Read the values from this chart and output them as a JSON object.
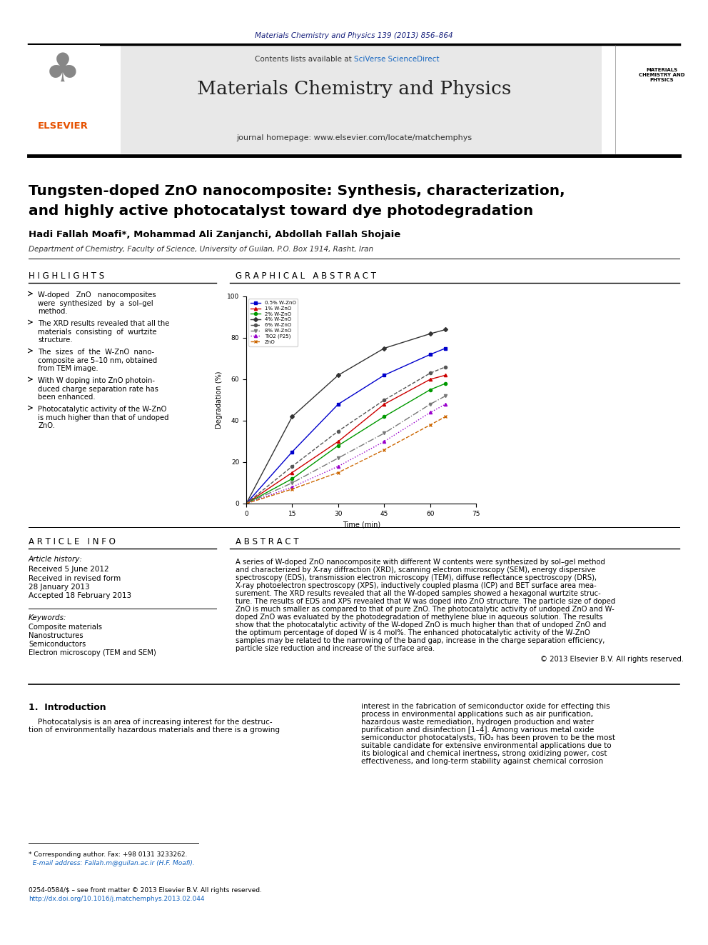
{
  "journal_ref": "Materials Chemistry and Physics 139 (2013) 856–864",
  "journal_name": "Materials Chemistry and Physics",
  "journal_url": "journal homepage: www.elsevier.com/locate/matchemphys",
  "contents_line": "Contents lists available at SciVerse ScienceDirect",
  "paper_title": "Tungsten-doped ZnO nanocomposite: Synthesis, characterization,\nand highly active photocatalyst toward dye photodegradation",
  "authors": "Hadi Fallah Moafi*, Mohammad Ali Zanjanchi, Abdollah Fallah Shojaie",
  "affiliation": "Department of Chemistry, Faculty of Science, University of Guilan, P.O. Box 1914, Rasht, Iran",
  "highlights_title": "H I G H L I G H T S",
  "highlights": [
    "W-doped   ZnO   nanocomposites\nwere  synthesized  by  a  sol–gel\nmethod.",
    "The XRD results revealed that all the\nmaterials  consisting  of  wurtzite\nstructure.",
    "The  sizes  of  the  W-ZnO  nano-\ncomposite are 5–10 nm, obtained\nfrom TEM image.",
    "With W doping into ZnO photoin-\nduced charge separation rate has\nbeen enhanced.",
    "Photocatalytic activity of the W-ZnO\nis much higher than that of undoped\nZnO."
  ],
  "graphical_abstract_title": "G R A P H I C A L   A B S T R A C T",
  "article_info_title": "A R T I C L E   I N F O",
  "article_history_title": "Article history:",
  "received": "Received 5 June 2012",
  "received_revised": "Received in revised form\n28 January 2013",
  "accepted": "Accepted 18 February 2013",
  "keywords_title": "Keywords:",
  "keywords": "Composite materials\nNanostructures\nSemiconductors\nElectron microscopy (TEM and SEM)",
  "abstract_title": "A B S T R A C T",
  "abstract_text": "A series of W-doped ZnO nanocomposite with different W contents were synthesized by sol–gel method\nand characterized by X-ray diffraction (XRD), scanning electron microscopy (SEM), energy dispersive\nspectroscopy (EDS), transmission electron microscopy (TEM), diffuse reflectance spectroscopy (DRS),\nX-ray photoelectron spectroscopy (XPS), inductively coupled plasma (ICP) and BET surface area mea-\nsurement. The XRD results revealed that all the W-doped samples showed a hexagonal wurtzite struc-\nture. The results of EDS and XPS revealed that W was doped into ZnO structure. The particle size of doped\nZnO is much smaller as compared to that of pure ZnO. The photocatalytic activity of undoped ZnO and W-\ndoped ZnO was evaluated by the photodegradation of methylene blue in aqueous solution. The results\nshow that the photocatalytic activity of the W-doped ZnO is much higher than that of undoped ZnO and\nthe optimum percentage of doped W is 4 mol%. The enhanced photocatalytic activity of the W-ZnO\nsamples may be related to the narrowing of the band gap, increase in the charge separation efficiency,\nparticle size reduction and increase of the surface area.",
  "copyright": "© 2013 Elsevier B.V. All rights reserved.",
  "intro_title": "1.  Introduction",
  "intro_left": "    Photocatalysis is an area of increasing interest for the destruc-\ntion of environmentally hazardous materials and there is a growing",
  "intro_right": "interest in the fabrication of semiconductor oxide for effecting this\nprocess in environmental applications such as air purification,\nhazardous waste remediation, hydrogen production and water\npurification and disinfection [1–4]. Among various metal oxide\nsemiconductor photocatalysts, TiO₂ has been proven to be the most\nsuitable candidate for extensive environmental applications due to\nits biological and chemical inertness, strong oxidizing power, cost\neffectiveness, and long-term stability against chemical corrosion",
  "footnote1": "* Corresponding author. Fax: +98 0131 3233262.",
  "footnote2": "  E-mail address: Fallah.m@guilan.ac.ir (H.F. Moafi).",
  "footnote3": "0254-0584/$ – see front matter © 2013 Elsevier B.V. All rights reserved.",
  "footnote4": "http://dx.doi.org/10.1016/j.matchemphys.2013.02.044",
  "graph_series": [
    {
      "label": "0.5% W-ZnO",
      "color": "#0000cc",
      "style": "-",
      "marker": "s",
      "data_x": [
        0,
        15,
        30,
        45,
        60,
        65
      ],
      "data_y": [
        0,
        25,
        48,
        62,
        72,
        75
      ]
    },
    {
      "label": "1% W-ZnO",
      "color": "#cc0000",
      "style": "-",
      "marker": "^",
      "data_x": [
        0,
        15,
        30,
        45,
        60,
        65
      ],
      "data_y": [
        0,
        15,
        30,
        48,
        60,
        62
      ]
    },
    {
      "label": "2% W-ZnO",
      "color": "#009900",
      "style": "-",
      "marker": "o",
      "data_x": [
        0,
        15,
        30,
        45,
        60,
        65
      ],
      "data_y": [
        0,
        12,
        28,
        42,
        55,
        58
      ]
    },
    {
      "label": "4% W-ZnO",
      "color": "#333333",
      "style": "-",
      "marker": "D",
      "data_x": [
        0,
        15,
        30,
        45,
        60,
        65
      ],
      "data_y": [
        0,
        42,
        62,
        75,
        82,
        84
      ]
    },
    {
      "label": "6% W-ZnO",
      "color": "#555555",
      "style": "--",
      "marker": "o",
      "data_x": [
        0,
        15,
        30,
        45,
        60,
        65
      ],
      "data_y": [
        0,
        18,
        35,
        50,
        63,
        66
      ]
    },
    {
      "label": "8% W-ZnO",
      "color": "#777777",
      "style": "-.",
      "marker": "v",
      "data_x": [
        0,
        15,
        30,
        45,
        60,
        65
      ],
      "data_y": [
        0,
        10,
        22,
        34,
        48,
        52
      ]
    },
    {
      "label": "TiO2 (P25)",
      "color": "#9900cc",
      "style": ":",
      "marker": "^",
      "data_x": [
        0,
        15,
        30,
        45,
        60,
        65
      ],
      "data_y": [
        0,
        8,
        18,
        30,
        44,
        48
      ]
    },
    {
      "label": "ZnO",
      "color": "#cc6600",
      "style": "--",
      "marker": "x",
      "data_x": [
        0,
        15,
        30,
        45,
        60,
        65
      ],
      "data_y": [
        0,
        7,
        15,
        26,
        38,
        42
      ]
    }
  ],
  "graph_xlabel": "Time (min)",
  "graph_ylabel": "Degradation (%)",
  "graph_xlim": [
    0,
    75
  ],
  "graph_ylim": [
    0,
    100
  ],
  "graph_xticks": [
    0,
    15,
    30,
    45,
    60,
    75
  ],
  "graph_yticks": [
    0,
    20,
    40,
    60,
    80,
    100
  ]
}
